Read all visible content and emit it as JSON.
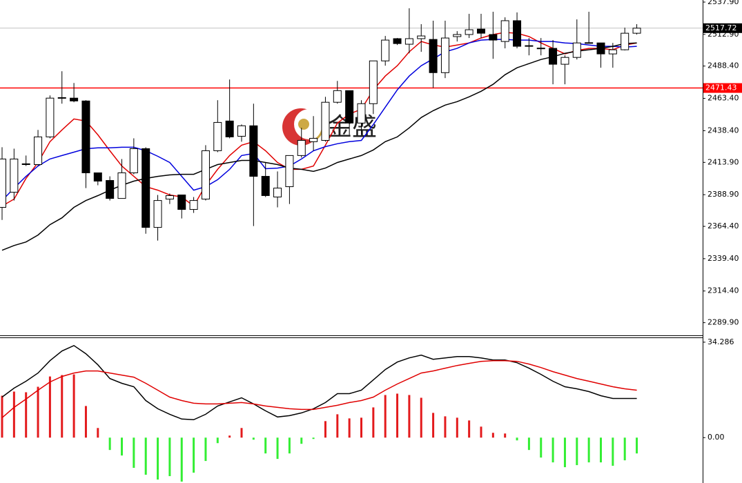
{
  "watermark": "金盛",
  "chart_data": [
    {
      "type": "candlestick",
      "up_color": "#ffffff",
      "down_color": "#000000",
      "open": [
        2379.1,
        2390.8,
        2412.8,
        2412.2,
        2433.6,
        2464.0,
        2463.6,
        2461.4,
        2405.8,
        2399.9,
        2386.0,
        2405.8,
        2424.5,
        2363.6,
        2385.5,
        2388.7,
        2377.5,
        2385.5,
        2422.9,
        2445.9,
        2434.1,
        2442.2,
        2403.1,
        2387.1,
        2395.1,
        2419.2,
        2429.9,
        2430.9,
        2460.4,
        2469.4,
        2444.3,
        2459.3,
        2492.4,
        2509.6,
        2505.3,
        2509.6,
        2509.0,
        2483.3,
        2511.2,
        2512.8,
        2517.0,
        2512.8,
        2507.4,
        2523.5,
        2504.2,
        2502.1,
        2502.1,
        2489.8,
        2495.1,
        2506.3,
        2506.3,
        2497.8,
        2501.0,
        2513.8
      ],
      "high": [
        2425.6,
        2424.5,
        2419.2,
        2439.0,
        2465.7,
        2484.4,
        2475.3,
        2462.0,
        2405.8,
        2403.1,
        2416.5,
        2432.5,
        2425.6,
        2388.7,
        2389.8,
        2388.7,
        2387.1,
        2427.2,
        2462.0,
        2478.0,
        2443.2,
        2459.3,
        2413.8,
        2406.9,
        2419.2,
        2440.6,
        2449.7,
        2464.6,
        2476.9,
        2469.4,
        2462.0,
        2492.4,
        2511.7,
        2510.1,
        2533.1,
        2520.8,
        2523.5,
        2523.5,
        2515.4,
        2528.8,
        2528.8,
        2530.4,
        2526.1,
        2529.9,
        2510.1,
        2510.1,
        2508.5,
        2496.7,
        2524.5,
        2530.4,
        2506.3,
        2506.3,
        2518.1,
        2520.8
      ],
      "low": [
        2369.4,
        2384.4,
        2411.1,
        2411.1,
        2432.5,
        2459.3,
        2460.4,
        2394.0,
        2396.2,
        2384.4,
        2386.0,
        2404.7,
        2358.7,
        2353.4,
        2381.7,
        2370.5,
        2374.8,
        2384.4,
        2421.8,
        2432.5,
        2429.9,
        2364.6,
        2387.1,
        2379.1,
        2381.7,
        2417.6,
        2422.9,
        2429.9,
        2459.3,
        2435.2,
        2435.2,
        2451.3,
        2488.7,
        2504.7,
        2498.3,
        2499.4,
        2471.6,
        2479.1,
        2507.4,
        2510.1,
        2510.1,
        2494.0,
        2502.1,
        2502.1,
        2496.7,
        2496.7,
        2474.3,
        2474.3,
        2493.5,
        2506.0,
        2487.1,
        2487.1,
        2500.5,
        2512.8
      ],
      "close": [
        2416.5,
        2416.5,
        2412.2,
        2433.6,
        2463.6,
        2463.6,
        2461.4,
        2405.8,
        2399.4,
        2386.0,
        2405.8,
        2424.5,
        2363.6,
        2384.4,
        2388.2,
        2377.5,
        2384.4,
        2422.9,
        2444.8,
        2433.6,
        2442.2,
        2403.1,
        2388.2,
        2394.0,
        2419.2,
        2430.9,
        2432.5,
        2460.4,
        2469.4,
        2444.3,
        2459.3,
        2492.4,
        2508.5,
        2505.8,
        2509.6,
        2511.7,
        2483.3,
        2510.1,
        2512.8,
        2516.5,
        2513.8,
        2508.5,
        2523.5,
        2503.7,
        2504.0,
        2502.3,
        2489.8,
        2495.1,
        2506.3,
        2506.5,
        2497.8,
        2501.0,
        2513.8,
        2517.72
      ],
      "lines": [
        {
          "color": "#e00000",
          "values": [
            2380.1,
            2385.5,
            2401.5,
            2413.8,
            2429.9,
            2439.0,
            2447.5,
            2445.9,
            2435.2,
            2422.9,
            2411.1,
            2403.1,
            2395.1,
            2392.4,
            2388.7,
            2387.1,
            2380.1,
            2396.2,
            2408.5,
            2419.2,
            2427.2,
            2429.9,
            2422.9,
            2413.8,
            2408.5,
            2408.5,
            2411.1,
            2427.2,
            2444.3,
            2451.3,
            2455.0,
            2470.0,
            2480.7,
            2488.7,
            2499.4,
            2507.4,
            2504.7,
            2503.1,
            2504.7,
            2506.3,
            2510.1,
            2512.8,
            2514.4,
            2513.8,
            2511.2,
            2506.3,
            2502.1,
            2497.8,
            2500.5,
            2502.1,
            2502.1,
            2501.0,
            2504.7,
            2506.3
          ]
        },
        {
          "color": "#0000dd",
          "values": [
            2384.4,
            2394.0,
            2403.1,
            2411.1,
            2416.5,
            2419.2,
            2421.8,
            2424.5,
            2425.1,
            2425.1,
            2425.6,
            2425.6,
            2422.9,
            2418.6,
            2413.8,
            2403.1,
            2392.4,
            2395.1,
            2400.5,
            2408.5,
            2419.2,
            2420.8,
            2409.0,
            2409.5,
            2411.1,
            2416.5,
            2422.9,
            2426.1,
            2428.3,
            2429.9,
            2430.9,
            2443.2,
            2456.6,
            2470.0,
            2480.7,
            2488.7,
            2494.0,
            2499.4,
            2502.1,
            2506.3,
            2508.5,
            2509.0,
            2509.0,
            2508.5,
            2508.5,
            2507.4,
            2507.4,
            2506.3,
            2505.8,
            2504.7,
            2503.7,
            2503.7,
            2503.1,
            2503.7
          ]
        },
        {
          "color": "#000000",
          "values": [
            2345.9,
            2349.6,
            2352.3,
            2357.7,
            2365.7,
            2371.0,
            2379.1,
            2384.4,
            2388.2,
            2392.4,
            2396.2,
            2399.4,
            2401.5,
            2403.1,
            2404.2,
            2404.7,
            2404.7,
            2408.5,
            2412.2,
            2413.8,
            2415.4,
            2415.4,
            2413.8,
            2412.2,
            2409.5,
            2408.5,
            2406.9,
            2409.5,
            2413.8,
            2416.5,
            2419.2,
            2423.5,
            2429.9,
            2433.6,
            2440.6,
            2448.6,
            2453.9,
            2458.2,
            2460.9,
            2464.6,
            2468.9,
            2474.3,
            2481.7,
            2487.1,
            2490.3,
            2493.5,
            2495.6,
            2498.3,
            2499.9,
            2501.0,
            2502.1,
            2503.7,
            2505.8,
            2506.3
          ]
        }
      ],
      "level": 2471.43,
      "level_color": "#ff0000",
      "ylim": [
        2280.1,
        2539.5
      ],
      "yticks": [
        {
          "value": 2537.9,
          "label": "2537.90"
        },
        {
          "value": 2512.9,
          "label": "2512.90"
        },
        {
          "value": 2488.4,
          "label": "2488.40"
        },
        {
          "value": 2463.4,
          "label": "2463.40"
        },
        {
          "value": 2438.4,
          "label": "2438.40"
        },
        {
          "value": 2413.9,
          "label": "2413.90"
        },
        {
          "value": 2388.9,
          "label": "2388.90"
        },
        {
          "value": 2364.4,
          "label": "2364.40"
        },
        {
          "value": 2339.4,
          "label": "2339.40"
        },
        {
          "value": 2314.4,
          "label": "2314.40"
        },
        {
          "value": 2289.9,
          "label": "2289.90"
        }
      ]
    },
    {
      "type": "macd",
      "positive_color": "#e31a1c",
      "negative_color": "#33ee33",
      "histogram": [
        15.06,
        16.54,
        16.3,
        18.27,
        21.97,
        22.47,
        22.71,
        11.36,
        3.46,
        -4.44,
        -6.42,
        -10.86,
        -13.33,
        -15.06,
        -13.83,
        -15.8,
        -12.59,
        -8.39,
        -1.98,
        0.74,
        3.46,
        -0.74,
        -5.68,
        -7.65,
        -5.68,
        -2.22,
        -0.49,
        5.93,
        8.39,
        6.91,
        7.16,
        10.86,
        15.31,
        15.8,
        15.31,
        14.32,
        8.89,
        7.65,
        7.16,
        6.17,
        3.95,
        1.73,
        1.48,
        -0.99,
        -4.44,
        -7.16,
        -8.89,
        -10.62,
        -9.88,
        -8.89,
        -8.89,
        -10.12,
        -8.15,
        -5.68
      ],
      "lines": [
        {
          "color": "#000000",
          "values": [
            14.57,
            17.78,
            20.25,
            23.21,
            27.65,
            31.11,
            33.08,
            30.12,
            26.17,
            21.23,
            19.51,
            18.27,
            13.33,
            10.37,
            8.39,
            6.67,
            6.42,
            8.39,
            11.36,
            12.84,
            14.32,
            12.1,
            9.63,
            7.41,
            7.9,
            8.89,
            10.37,
            12.59,
            15.8,
            15.8,
            17.04,
            20.74,
            24.44,
            27.16,
            28.64,
            29.63,
            28.15,
            28.64,
            29.13,
            29.13,
            28.64,
            27.9,
            27.9,
            26.91,
            24.94,
            22.71,
            20.25,
            18.27,
            17.53,
            16.54,
            15.06,
            14.07,
            14.07,
            14.07
          ]
        },
        {
          "color": "#e00000",
          "values": [
            7.16,
            10.86,
            13.83,
            17.04,
            20.0,
            21.97,
            23.21,
            23.95,
            23.95,
            23.21,
            22.47,
            21.73,
            19.51,
            17.04,
            14.57,
            13.33,
            12.35,
            12.1,
            12.1,
            12.35,
            12.59,
            12.1,
            11.36,
            10.86,
            10.37,
            10.12,
            10.12,
            10.86,
            11.6,
            12.59,
            13.33,
            14.57,
            17.04,
            19.26,
            21.23,
            23.21,
            23.95,
            24.94,
            25.92,
            26.67,
            27.41,
            27.65,
            27.65,
            27.41,
            26.42,
            25.18,
            23.7,
            22.47,
            21.23,
            20.25,
            19.26,
            18.27,
            17.53,
            17.04
          ]
        }
      ],
      "ylim": [
        -16.3,
        36.0
      ],
      "yticks": [
        34.286,
        {
          "value": 0,
          "label": "0.00"
        }
      ]
    }
  ]
}
